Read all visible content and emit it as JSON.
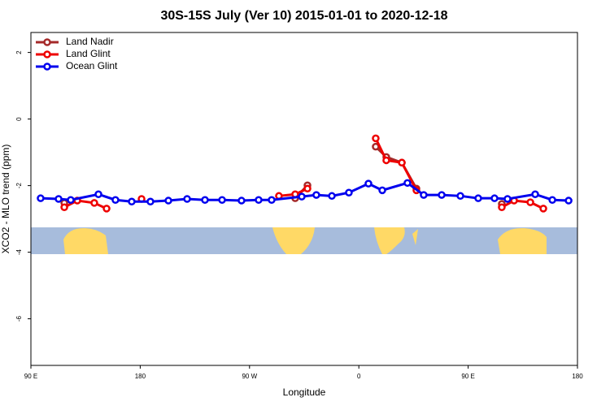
{
  "chart_data": {
    "type": "line",
    "title": "30S-15S July (Ver 10)   2015-01-01 to 2020-12-18",
    "x_label": "Longitude",
    "y_label": "XCO2 - MLO trend (ppm)",
    "xlim": [
      90,
      540
    ],
    "xticks": [
      {
        "value": 90,
        "label": "90 E"
      },
      {
        "value": 180,
        "label": "180"
      },
      {
        "value": 270,
        "label": "90 W"
      },
      {
        "value": 360,
        "label": "0"
      },
      {
        "value": 450,
        "label": "90 E"
      },
      {
        "value": 540,
        "label": "180"
      }
    ],
    "ylim": [
      -7.4,
      2.6
    ],
    "yticks": [
      2,
      0,
      -2,
      -4,
      -6
    ],
    "legend": "top-left",
    "series": [
      {
        "name": "Land Nadir",
        "color": "#a52a2a",
        "x": [
          117.5,
          null,
          307.6,
          317.7,
          null,
          373.9,
          382.6,
          395.4,
          407.4,
          null,
          477.7
        ],
        "values": [
          -2.52,
          null,
          -2.38,
          -1.99,
          null,
          -0.83,
          -1.14,
          -1.31,
          -2.09,
          null,
          -2.55
        ]
      },
      {
        "name": "Land Glint",
        "color": "#ee0000",
        "x": [
          117.5,
          128.2,
          142.2,
          152.3,
          null,
          181.1,
          null,
          294.2,
          307.6,
          317.7,
          null,
          373.9,
          382.6,
          395.4,
          407.4,
          null,
          477.7,
          487.8,
          501.2,
          511.9
        ],
        "values": [
          -2.65,
          -2.45,
          -2.52,
          -2.69,
          null,
          -2.4,
          null,
          -2.31,
          -2.26,
          -2.09,
          null,
          -0.58,
          -1.24,
          -1.31,
          -2.14,
          null,
          -2.65,
          -2.45,
          -2.5,
          -2.69
        ]
      },
      {
        "name": "Ocean Glint",
        "color": "#0000ee",
        "x": [
          98.0,
          112.8,
          122.8,
          145.6,
          159.6,
          173.0,
          188.4,
          203.2,
          218.6,
          233.3,
          247.4,
          263.4,
          277.5,
          288.2,
          313.0,
          325.0,
          337.8,
          351.8,
          367.9,
          379.3,
          400.0,
          413.4,
          428.2,
          443.6,
          458.3,
          471.7,
          482.4,
          505.2,
          519.3,
          532.7
        ],
        "values": [
          -2.38,
          -2.4,
          -2.43,
          -2.26,
          -2.43,
          -2.48,
          -2.48,
          -2.45,
          -2.4,
          -2.43,
          -2.43,
          -2.45,
          -2.43,
          -2.43,
          -2.33,
          -2.28,
          -2.31,
          -2.21,
          -1.94,
          -2.14,
          -1.92,
          -2.28,
          -2.28,
          -2.31,
          -2.38,
          -2.38,
          -2.4,
          -2.26,
          -2.43,
          -2.45
        ]
      }
    ]
  }
}
